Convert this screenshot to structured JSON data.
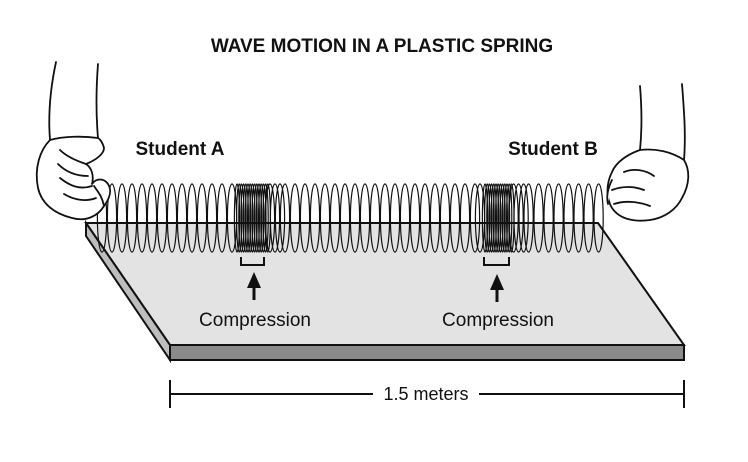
{
  "title": "WAVE MOTION IN A PLASTIC SPRING",
  "students": {
    "left": "Student A",
    "right": "Student B"
  },
  "compressions": [
    {
      "label": "Compression"
    },
    {
      "label": "Compression"
    }
  ],
  "dimension": {
    "label": "1.5 meters"
  }
}
